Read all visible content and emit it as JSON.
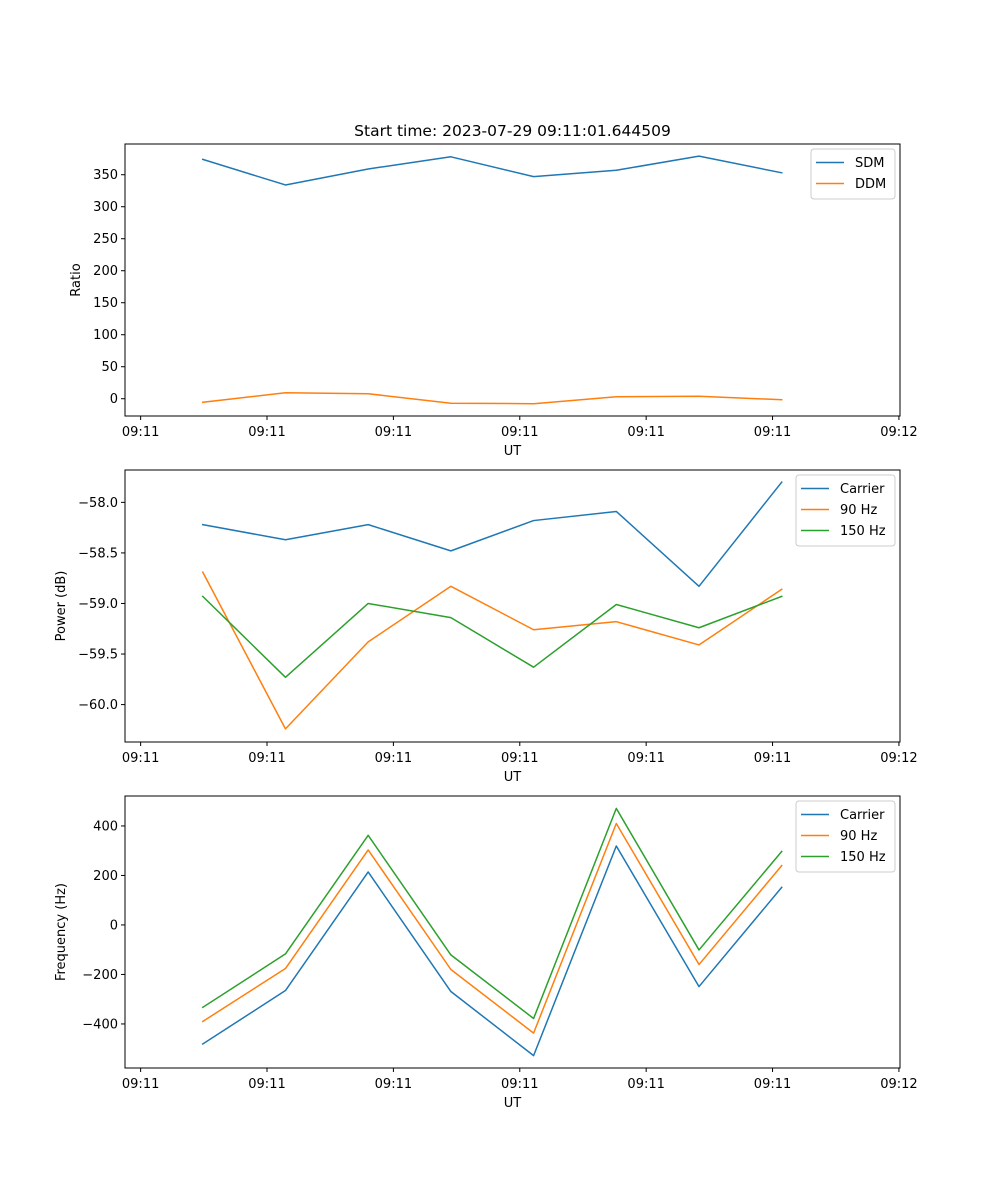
{
  "figure": {
    "title": "Start time: 2023-07-29 09:11:01.644509"
  },
  "chart_data": [
    {
      "type": "line",
      "title": "Start time: 2023-07-29 09:11:01.644509",
      "xlabel": "UT",
      "ylabel": "Ratio",
      "x": [
        0,
        1,
        2,
        3,
        4,
        5,
        6,
        7
      ],
      "xlim": [
        -0.94,
        8.43
      ],
      "xticks": [
        -0.751,
        0.777,
        2.305,
        3.833,
        5.361,
        6.889,
        8.417
      ],
      "xtick_labels": [
        "09:11",
        "09:11",
        "09:11",
        "09:11",
        "09:11",
        "09:11",
        "09:12"
      ],
      "ylim": [
        -27,
        398
      ],
      "yticks": [
        0,
        50,
        100,
        150,
        200,
        250,
        300,
        350
      ],
      "ytick_labels": [
        "0",
        "50",
        "100",
        "150",
        "200",
        "250",
        "300",
        "350"
      ],
      "legend_position": "top-right",
      "grid": false,
      "series": [
        {
          "name": "SDM",
          "color": "#1f77b4",
          "values": [
            374,
            334,
            359,
            378,
            347,
            357,
            379,
            353
          ]
        },
        {
          "name": "DDM",
          "color": "#ff7f0e",
          "values": [
            -5.5,
            9.4,
            7.8,
            -7.0,
            -7.8,
            3.1,
            3.9,
            -1.6
          ]
        }
      ]
    },
    {
      "type": "line",
      "title": "",
      "xlabel": "UT",
      "ylabel": "Power (dB)",
      "x": [
        0,
        1,
        2,
        3,
        4,
        5,
        6,
        7
      ],
      "xlim": [
        -0.94,
        8.43
      ],
      "xticks": [
        -0.751,
        0.777,
        2.305,
        3.833,
        5.361,
        6.889,
        8.417
      ],
      "xtick_labels": [
        "09:11",
        "09:11",
        "09:11",
        "09:11",
        "09:11",
        "09:11",
        "09:12"
      ],
      "ylim": [
        -60.37,
        -57.68
      ],
      "yticks": [
        -60.0,
        -59.5,
        -59.0,
        -58.5,
        -58.0
      ],
      "ytick_labels": [
        "−60.0",
        "−59.5",
        "−59.0",
        "−58.5",
        "−58.0"
      ],
      "legend_position": "top-right",
      "grid": false,
      "series": [
        {
          "name": "Carrier",
          "color": "#1f77b4",
          "values": [
            -58.22,
            -58.37,
            -58.22,
            -58.48,
            -58.18,
            -58.09,
            -58.83,
            -57.8
          ]
        },
        {
          "name": "90 Hz",
          "color": "#ff7f0e",
          "values": [
            -58.69,
            -60.24,
            -59.38,
            -58.83,
            -59.26,
            -59.18,
            -59.41,
            -58.86
          ]
        },
        {
          "name": "150 Hz",
          "color": "#2ca02c",
          "values": [
            -58.93,
            -59.73,
            -59.0,
            -59.14,
            -59.63,
            -59.01,
            -59.24,
            -58.93
          ]
        }
      ]
    },
    {
      "type": "line",
      "title": "",
      "xlabel": "UT",
      "ylabel": "Frequency (Hz)",
      "x": [
        0,
        1,
        2,
        3,
        4,
        5,
        6,
        7
      ],
      "xlim": [
        -0.94,
        8.43
      ],
      "xticks": [
        -0.751,
        0.777,
        2.305,
        3.833,
        5.361,
        6.889,
        8.417
      ],
      "xtick_labels": [
        "09:11",
        "09:11",
        "09:11",
        "09:11",
        "09:11",
        "09:11",
        "09:12"
      ],
      "ylim": [
        -578,
        521
      ],
      "yticks": [
        -400,
        -200,
        0,
        200,
        400
      ],
      "ytick_labels": [
        "−400",
        "−200",
        "0",
        "200",
        "400"
      ],
      "legend_position": "top-right",
      "grid": false,
      "series": [
        {
          "name": "Carrier",
          "color": "#1f77b4",
          "values": [
            -481,
            -265,
            214,
            -269,
            -528,
            319,
            -249,
            152
          ]
        },
        {
          "name": "90 Hz",
          "color": "#ff7f0e",
          "values": [
            -390,
            -176,
            303,
            -180,
            -437,
            410,
            -160,
            240
          ]
        },
        {
          "name": "150 Hz",
          "color": "#2ca02c",
          "values": [
            -333,
            -117,
            362,
            -121,
            -378,
            471,
            -101,
            297
          ]
        }
      ]
    }
  ]
}
